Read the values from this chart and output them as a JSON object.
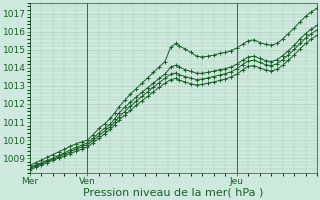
{
  "background_color": "#ceeade",
  "grid_color": "#a8ccb8",
  "line_color": "#1a5e28",
  "xlabel": "Pression niveau de la mer( hPa )",
  "xlabel_fontsize": 8,
  "ylabel_fontsize": 6.5,
  "ylim": [
    1008.2,
    1017.6
  ],
  "yticks": [
    1009,
    1010,
    1011,
    1012,
    1013,
    1014,
    1015,
    1016,
    1017
  ],
  "day_labels": [
    "Mer",
    "Ven",
    "Jeu"
  ],
  "day_positions": [
    0.0,
    0.2,
    0.72
  ],
  "series": [
    {
      "x": [
        0.0,
        0.02,
        0.04,
        0.06,
        0.08,
        0.1,
        0.12,
        0.14,
        0.16,
        0.18,
        0.2,
        0.22,
        0.24,
        0.26,
        0.28,
        0.295,
        0.31,
        0.33,
        0.35,
        0.37,
        0.39,
        0.41,
        0.43,
        0.45,
        0.47,
        0.49,
        0.51,
        0.52,
        0.54,
        0.56,
        0.58,
        0.6,
        0.62,
        0.64,
        0.66,
        0.68,
        0.7,
        0.72,
        0.74,
        0.76,
        0.78,
        0.8,
        0.82,
        0.84,
        0.86,
        0.88,
        0.9,
        0.92,
        0.94,
        0.96,
        0.98,
        1.0
      ],
      "y": [
        1008.6,
        1008.75,
        1008.9,
        1009.05,
        1009.2,
        1009.35,
        1009.5,
        1009.65,
        1009.8,
        1009.9,
        1010.0,
        1010.3,
        1010.65,
        1010.9,
        1011.2,
        1011.5,
        1011.85,
        1012.2,
        1012.55,
        1012.85,
        1013.15,
        1013.45,
        1013.75,
        1014.05,
        1014.35,
        1015.15,
        1015.35,
        1015.2,
        1015.05,
        1014.85,
        1014.65,
        1014.6,
        1014.65,
        1014.7,
        1014.8,
        1014.85,
        1014.95,
        1015.1,
        1015.3,
        1015.5,
        1015.55,
        1015.4,
        1015.3,
        1015.25,
        1015.35,
        1015.6,
        1015.9,
        1016.2,
        1016.55,
        1016.85,
        1017.1,
        1017.3
      ]
    },
    {
      "x": [
        0.0,
        0.02,
        0.04,
        0.06,
        0.08,
        0.1,
        0.12,
        0.14,
        0.16,
        0.18,
        0.2,
        0.22,
        0.24,
        0.26,
        0.28,
        0.295,
        0.31,
        0.33,
        0.35,
        0.37,
        0.39,
        0.41,
        0.43,
        0.45,
        0.47,
        0.49,
        0.51,
        0.52,
        0.54,
        0.56,
        0.58,
        0.6,
        0.62,
        0.64,
        0.66,
        0.68,
        0.7,
        0.72,
        0.74,
        0.76,
        0.78,
        0.8,
        0.82,
        0.84,
        0.86,
        0.88,
        0.9,
        0.92,
        0.94,
        0.96,
        0.98,
        1.0
      ],
      "y": [
        1008.5,
        1008.62,
        1008.75,
        1008.88,
        1009.0,
        1009.15,
        1009.3,
        1009.45,
        1009.6,
        1009.72,
        1009.85,
        1010.1,
        1010.4,
        1010.65,
        1010.9,
        1011.18,
        1011.5,
        1011.82,
        1012.1,
        1012.38,
        1012.65,
        1012.9,
        1013.15,
        1013.42,
        1013.65,
        1014.05,
        1014.15,
        1014.05,
        1013.9,
        1013.8,
        1013.7,
        1013.7,
        1013.75,
        1013.82,
        1013.9,
        1013.95,
        1014.05,
        1014.2,
        1014.42,
        1014.6,
        1014.65,
        1014.52,
        1014.4,
        1014.35,
        1014.45,
        1014.68,
        1014.95,
        1015.25,
        1015.6,
        1015.9,
        1016.15,
        1016.35
      ]
    },
    {
      "x": [
        0.0,
        0.02,
        0.04,
        0.06,
        0.08,
        0.1,
        0.12,
        0.14,
        0.16,
        0.18,
        0.2,
        0.22,
        0.24,
        0.26,
        0.28,
        0.295,
        0.31,
        0.33,
        0.35,
        0.37,
        0.39,
        0.41,
        0.43,
        0.45,
        0.47,
        0.49,
        0.51,
        0.52,
        0.54,
        0.56,
        0.58,
        0.6,
        0.62,
        0.64,
        0.66,
        0.68,
        0.7,
        0.72,
        0.74,
        0.76,
        0.78,
        0.8,
        0.82,
        0.84,
        0.86,
        0.88,
        0.9,
        0.92,
        0.94,
        0.96,
        0.98,
        1.0
      ],
      "y": [
        1008.45,
        1008.57,
        1008.7,
        1008.83,
        1008.95,
        1009.08,
        1009.22,
        1009.35,
        1009.5,
        1009.62,
        1009.75,
        1009.98,
        1010.25,
        1010.5,
        1010.75,
        1011.0,
        1011.28,
        1011.58,
        1011.88,
        1012.15,
        1012.42,
        1012.68,
        1012.93,
        1013.18,
        1013.42,
        1013.65,
        1013.72,
        1013.62,
        1013.52,
        1013.42,
        1013.35,
        1013.38,
        1013.45,
        1013.52,
        1013.6,
        1013.68,
        1013.78,
        1013.95,
        1014.18,
        1014.38,
        1014.42,
        1014.3,
        1014.18,
        1014.12,
        1014.22,
        1014.45,
        1014.72,
        1015.02,
        1015.35,
        1015.65,
        1015.9,
        1016.1
      ]
    },
    {
      "x": [
        0.0,
        0.02,
        0.04,
        0.06,
        0.08,
        0.1,
        0.12,
        0.14,
        0.16,
        0.18,
        0.2,
        0.22,
        0.24,
        0.26,
        0.28,
        0.295,
        0.31,
        0.33,
        0.35,
        0.37,
        0.39,
        0.41,
        0.43,
        0.45,
        0.47,
        0.49,
        0.51,
        0.52,
        0.54,
        0.56,
        0.58,
        0.6,
        0.62,
        0.64,
        0.66,
        0.68,
        0.7,
        0.72,
        0.74,
        0.76,
        0.78,
        0.8,
        0.82,
        0.84,
        0.86,
        0.88,
        0.9,
        0.92,
        0.94,
        0.96,
        0.98,
        1.0
      ],
      "y": [
        1008.35,
        1008.5,
        1008.62,
        1008.75,
        1008.88,
        1009.0,
        1009.12,
        1009.25,
        1009.38,
        1009.5,
        1009.62,
        1009.85,
        1010.1,
        1010.35,
        1010.6,
        1010.85,
        1011.1,
        1011.38,
        1011.65,
        1011.92,
        1012.18,
        1012.42,
        1012.68,
        1012.92,
        1013.15,
        1013.35,
        1013.42,
        1013.32,
        1013.22,
        1013.12,
        1013.05,
        1013.08,
        1013.15,
        1013.22,
        1013.3,
        1013.38,
        1013.5,
        1013.65,
        1013.88,
        1014.08,
        1014.12,
        1014.0,
        1013.88,
        1013.82,
        1013.92,
        1014.15,
        1014.42,
        1014.72,
        1015.05,
        1015.35,
        1015.6,
        1015.8
      ]
    }
  ]
}
